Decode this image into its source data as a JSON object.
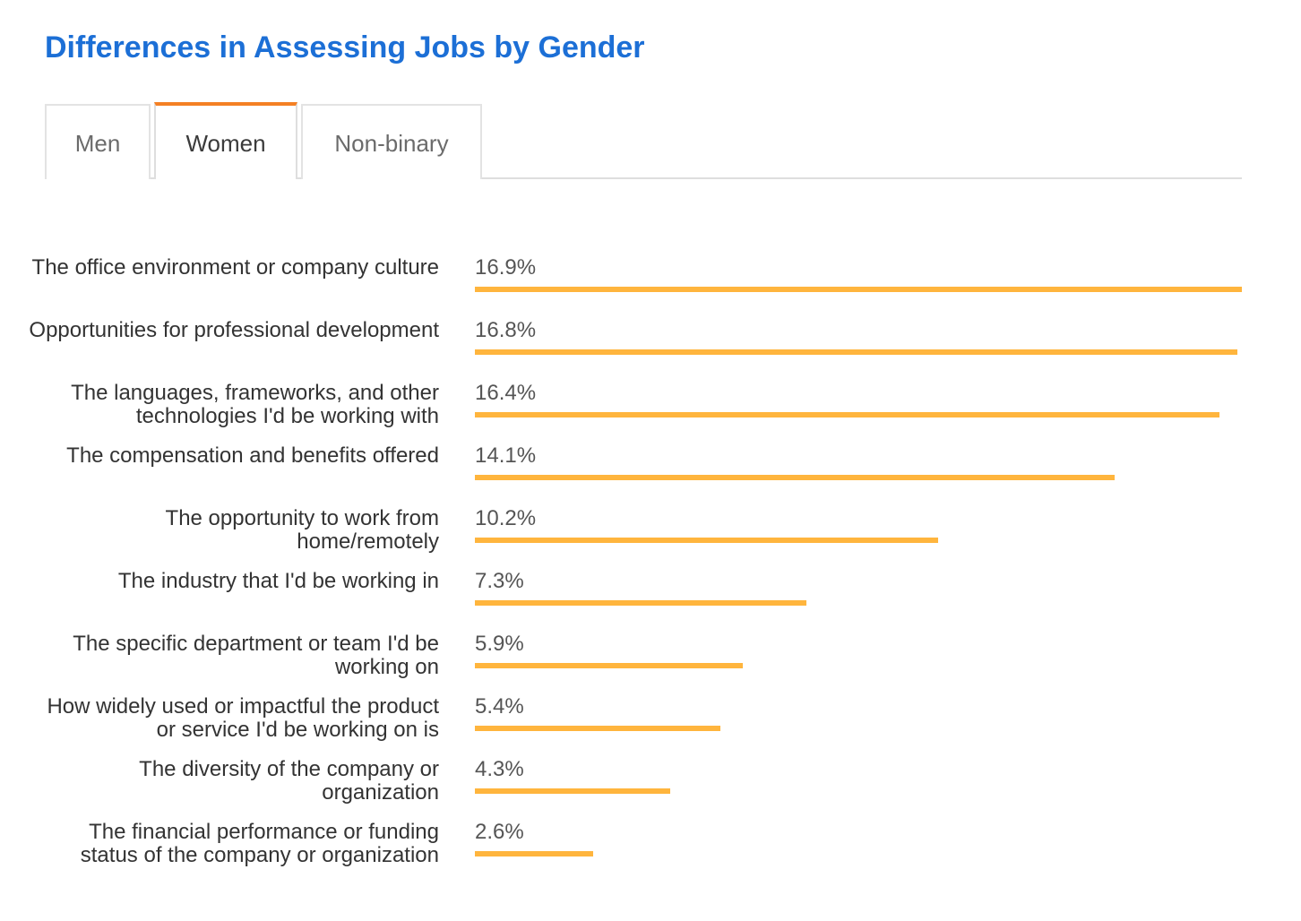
{
  "title": "Differences in Assessing Jobs by Gender",
  "tabs": [
    {
      "label": "Men",
      "active": false
    },
    {
      "label": "Women",
      "active": true
    },
    {
      "label": "Non-binary",
      "active": false
    }
  ],
  "colors": {
    "title": "#1c6fd6",
    "active_tab_accent": "#f48024",
    "bar": "#ffb53d"
  },
  "chart_data": {
    "type": "bar",
    "orientation": "horizontal",
    "value_format": "percent",
    "xlim": [
      0,
      16.9
    ],
    "grid": false,
    "categories": [
      "The office environment or company culture",
      "Opportunities for professional development",
      "The languages, frameworks, and other technologies I'd be working with",
      "The compensation and benefits offered",
      "The opportunity to work from home/remotely",
      "The industry that I'd be working in",
      "The specific department or team I'd be working on",
      "How widely used or impactful the product or service I'd be working on is",
      "The diversity of the company or organization",
      "The financial performance or funding status of the company or organization"
    ],
    "values": [
      16.9,
      16.8,
      16.4,
      14.1,
      10.2,
      7.3,
      5.9,
      5.4,
      4.3,
      2.6
    ],
    "value_labels": [
      "16.9%",
      "16.8%",
      "16.4%",
      "14.1%",
      "10.2%",
      "7.3%",
      "5.9%",
      "5.4%",
      "4.3%",
      "2.6%"
    ]
  }
}
